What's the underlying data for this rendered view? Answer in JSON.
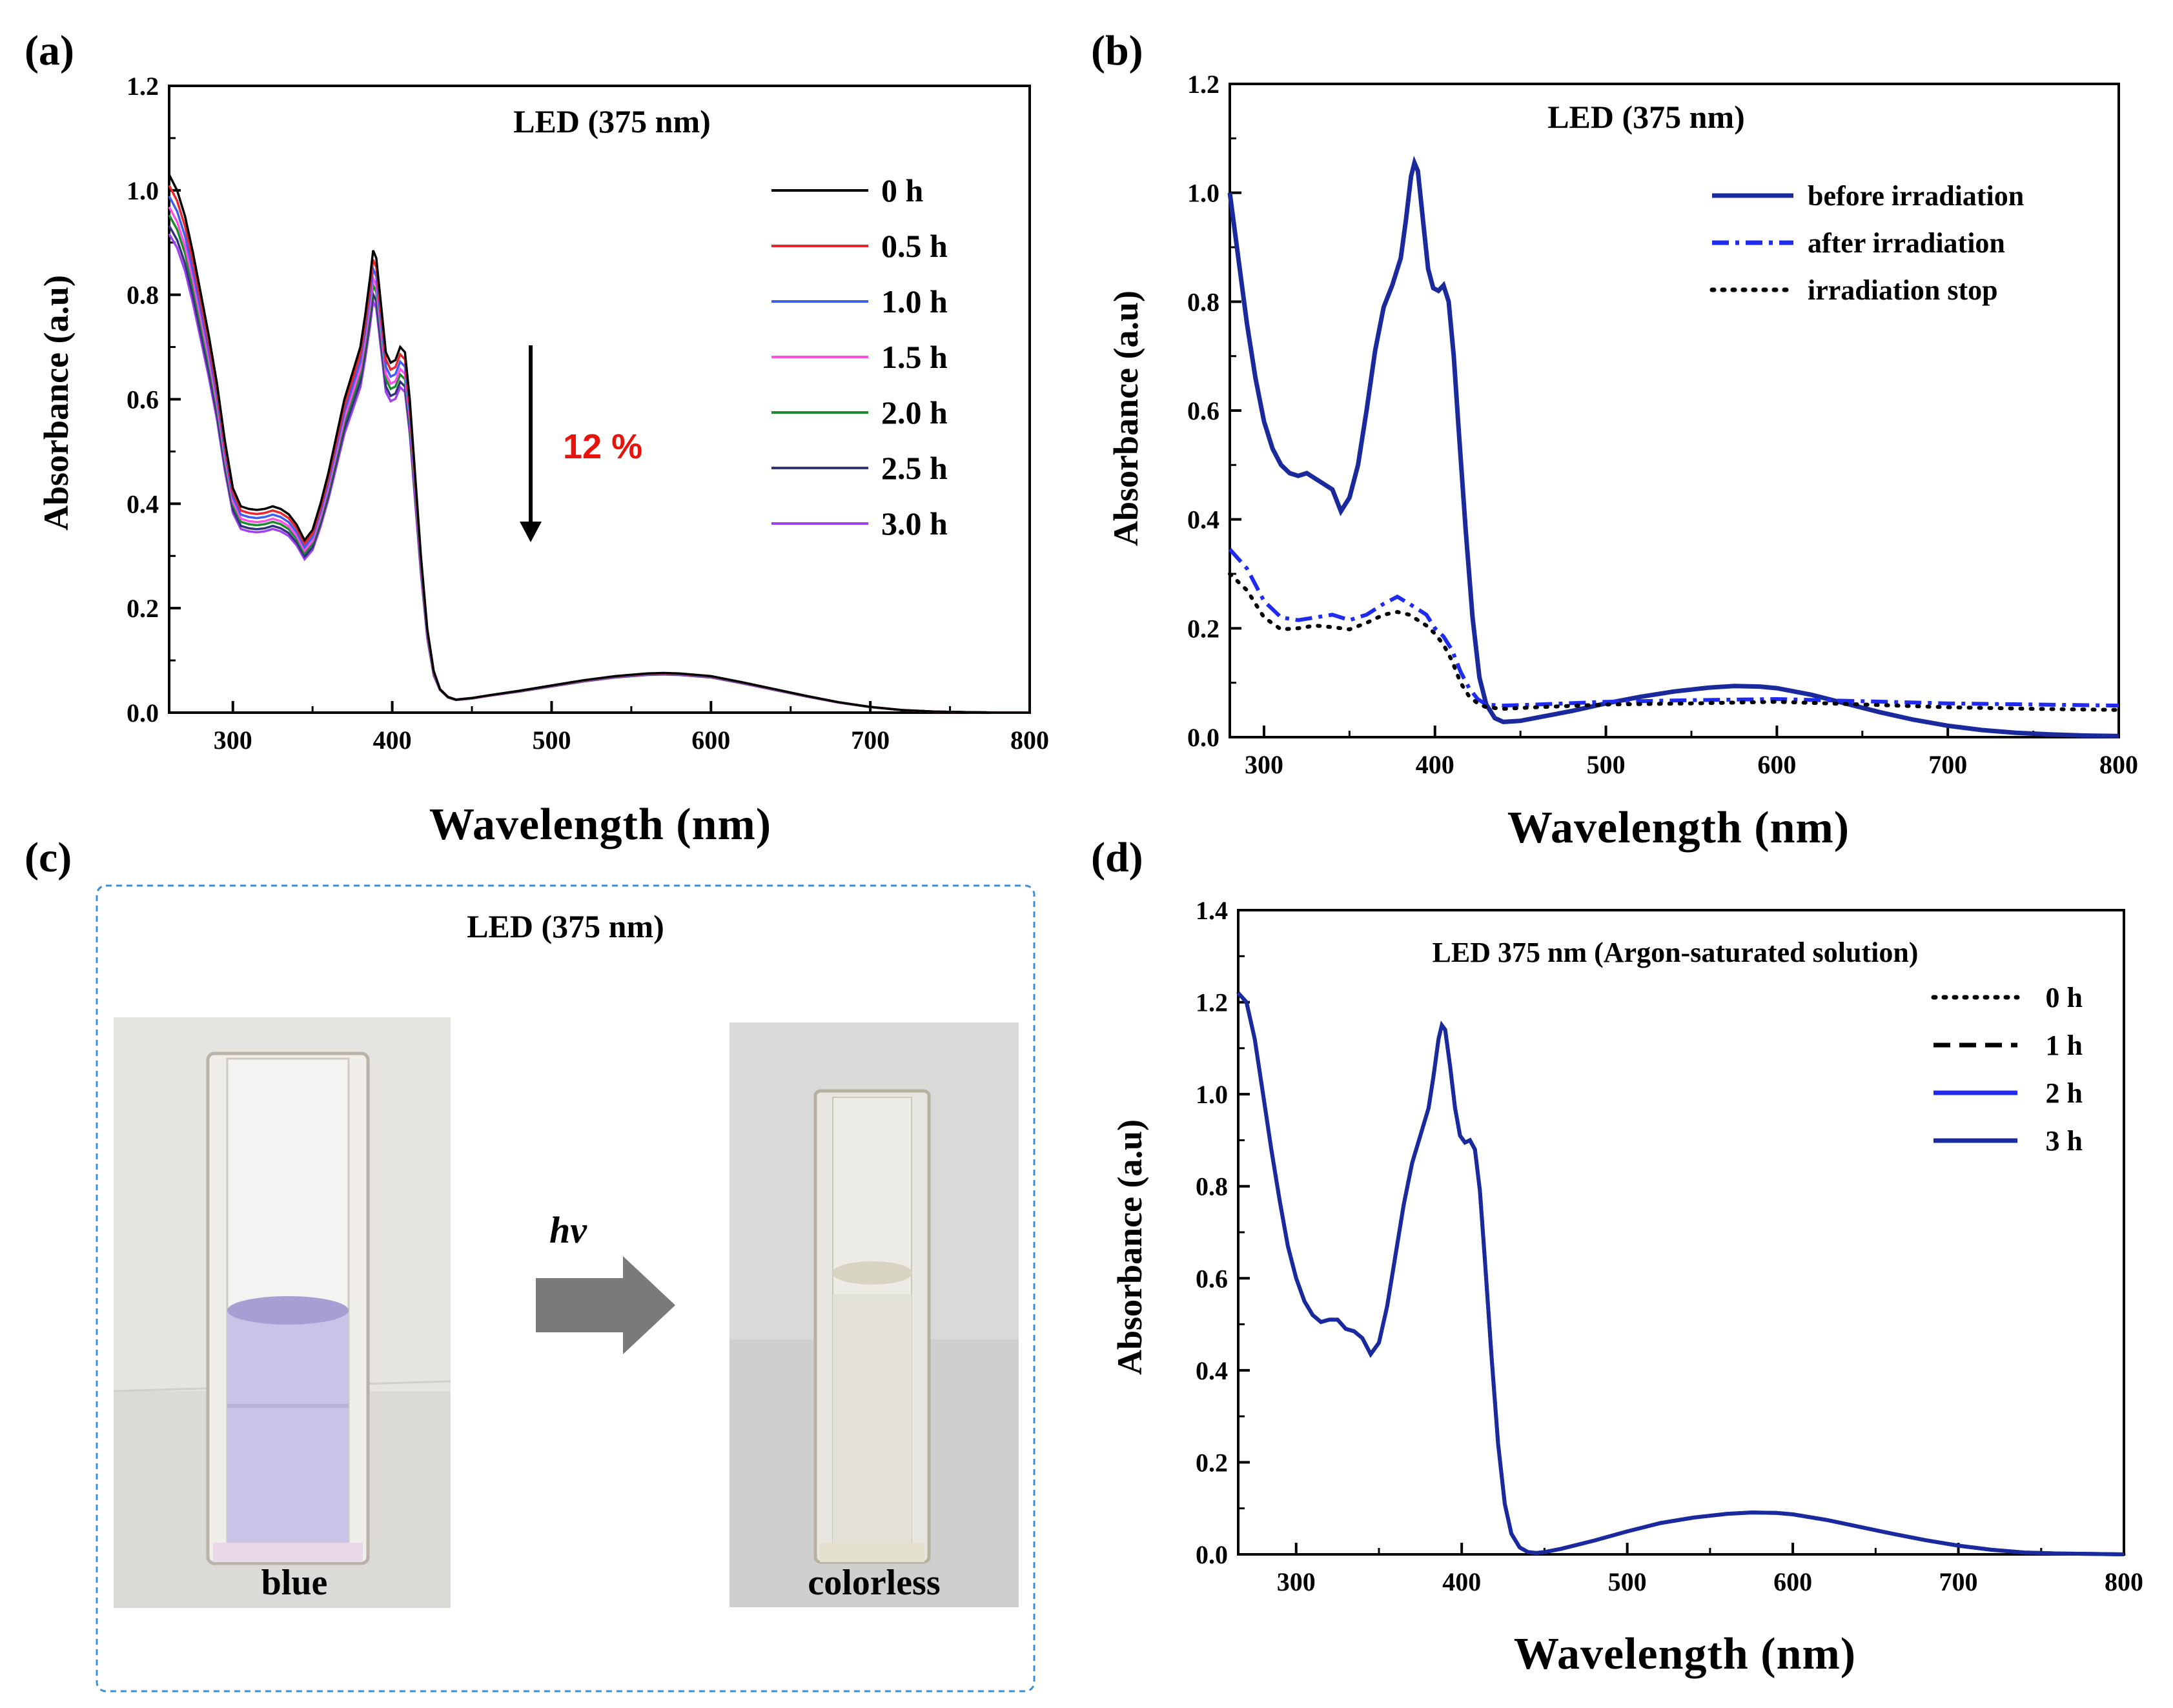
{
  "panels": {
    "a": {
      "letter": "(a)",
      "title": "LED (375 nm)",
      "annotation_percent": "12 %",
      "annotation_color": "#e8140c"
    },
    "b": {
      "letter": "(b)",
      "title": "LED (375 nm)"
    },
    "c": {
      "letter": "(c)",
      "title": "LED (375 nm)",
      "left_caption": "blue",
      "right_caption": "colorless",
      "arrow_label": "hv",
      "border_color": "#3a8fd6"
    },
    "d": {
      "letter": "(d)",
      "title": "LED 375 nm (Argon-saturated solution)"
    }
  },
  "chart_data": [
    {
      "id": "a",
      "type": "line",
      "title": "LED (375 nm)",
      "xlabel": "Wavelength (nm)",
      "ylabel": "Absorbance (a.u)",
      "xlim": [
        260,
        800
      ],
      "ylim": [
        0.0,
        1.2
      ],
      "xticks": [
        300,
        400,
        500,
        600,
        700,
        800
      ],
      "yticks": [
        "0.0",
        "0.2",
        "0.4",
        "0.6",
        "0.8",
        "1.0",
        "1.2"
      ],
      "legend_position": "right",
      "base_profile": {
        "x": [
          260,
          265,
          270,
          275,
          280,
          285,
          290,
          295,
          300,
          305,
          310,
          315,
          320,
          325,
          330,
          335,
          340,
          345,
          350,
          355,
          360,
          365,
          370,
          375,
          380,
          383,
          386,
          388,
          390,
          393,
          396,
          399,
          402,
          405,
          408,
          411,
          414,
          418,
          422,
          426,
          430,
          435,
          440,
          450,
          460,
          480,
          500,
          520,
          540,
          560,
          570,
          580,
          600,
          620,
          640,
          660,
          680,
          700,
          720,
          740,
          760,
          780,
          800
        ],
        "y": [
          1.03,
          1.0,
          0.95,
          0.88,
          0.8,
          0.72,
          0.63,
          0.52,
          0.43,
          0.395,
          0.39,
          0.388,
          0.39,
          0.395,
          0.39,
          0.38,
          0.36,
          0.33,
          0.35,
          0.4,
          0.46,
          0.53,
          0.6,
          0.65,
          0.7,
          0.76,
          0.83,
          0.885,
          0.87,
          0.78,
          0.69,
          0.67,
          0.675,
          0.7,
          0.69,
          0.6,
          0.47,
          0.3,
          0.16,
          0.08,
          0.045,
          0.03,
          0.025,
          0.028,
          0.033,
          0.042,
          0.052,
          0.062,
          0.07,
          0.075,
          0.076,
          0.075,
          0.07,
          0.058,
          0.045,
          0.032,
          0.02,
          0.011,
          0.005,
          0.002,
          0.001,
          0.0,
          0.0
        ]
      },
      "series": [
        {
          "name": "0 h",
          "color": "#000000",
          "scale": 1.0
        },
        {
          "name": "0.5 h",
          "color": "#e8262c",
          "scale": 0.98
        },
        {
          "name": "1.0 h",
          "color": "#3c5ff2",
          "scale": 0.96
        },
        {
          "name": "1.5 h",
          "color": "#ff4ee8",
          "scale": 0.94
        },
        {
          "name": "2.0 h",
          "color": "#1a8c2c",
          "scale": 0.925
        },
        {
          "name": "2.5 h",
          "color": "#33337a",
          "scale": 0.905
        },
        {
          "name": "3.0 h",
          "color": "#a040f2",
          "scale": 0.89
        }
      ]
    },
    {
      "id": "b",
      "type": "line",
      "title": "LED (375 nm)",
      "xlabel": "Wavelength (nm)",
      "ylabel": "Absorbance (a.u)",
      "xlim": [
        280,
        800
      ],
      "ylim": [
        0.0,
        1.2
      ],
      "xticks": [
        300,
        400,
        500,
        600,
        700,
        800
      ],
      "yticks": [
        "0.0",
        "0.2",
        "0.4",
        "0.6",
        "0.8",
        "1.0",
        "1.2"
      ],
      "legend_position": "top-right",
      "series": [
        {
          "name": "before irradiation",
          "color": "#1a2a9c",
          "style": "solid",
          "x": [
            280,
            285,
            290,
            295,
            300,
            305,
            310,
            315,
            320,
            325,
            330,
            335,
            340,
            345,
            350,
            355,
            360,
            365,
            370,
            375,
            380,
            383,
            386,
            388,
            390,
            393,
            396,
            399,
            402,
            405,
            408,
            411,
            414,
            418,
            422,
            426,
            430,
            435,
            440,
            450,
            460,
            480,
            500,
            520,
            540,
            560,
            575,
            590,
            600,
            620,
            640,
            660,
            680,
            700,
            720,
            740,
            760,
            780,
            800
          ],
          "y": [
            1.0,
            0.88,
            0.76,
            0.66,
            0.58,
            0.53,
            0.5,
            0.485,
            0.48,
            0.485,
            0.475,
            0.465,
            0.455,
            0.415,
            0.44,
            0.5,
            0.6,
            0.71,
            0.79,
            0.83,
            0.88,
            0.95,
            1.03,
            1.055,
            1.04,
            0.95,
            0.86,
            0.825,
            0.82,
            0.83,
            0.8,
            0.7,
            0.56,
            0.38,
            0.22,
            0.11,
            0.06,
            0.035,
            0.028,
            0.03,
            0.036,
            0.048,
            0.062,
            0.074,
            0.084,
            0.091,
            0.094,
            0.093,
            0.09,
            0.078,
            0.062,
            0.046,
            0.032,
            0.021,
            0.013,
            0.008,
            0.005,
            0.003,
            0.002
          ]
        },
        {
          "name": "after irradiation",
          "color": "#1f2cf0",
          "style": "dashdot",
          "x": [
            280,
            290,
            300,
            310,
            320,
            330,
            340,
            350,
            360,
            370,
            378,
            385,
            390,
            395,
            400,
            405,
            410,
            415,
            420,
            425,
            430,
            440,
            460,
            500,
            550,
            600,
            650,
            700,
            750,
            800
          ],
          "y": [
            0.345,
            0.31,
            0.25,
            0.22,
            0.215,
            0.22,
            0.225,
            0.215,
            0.225,
            0.245,
            0.258,
            0.245,
            0.235,
            0.225,
            0.2,
            0.185,
            0.16,
            0.12,
            0.09,
            0.07,
            0.06,
            0.058,
            0.06,
            0.065,
            0.068,
            0.07,
            0.066,
            0.062,
            0.06,
            0.058
          ]
        },
        {
          "name": "irradiation stop",
          "color": "#000000",
          "style": "dotted",
          "x": [
            280,
            290,
            300,
            310,
            320,
            330,
            340,
            350,
            360,
            370,
            378,
            385,
            390,
            395,
            400,
            405,
            410,
            415,
            420,
            425,
            430,
            440,
            460,
            500,
            550,
            600,
            650,
            700,
            750,
            800
          ],
          "y": [
            0.3,
            0.27,
            0.22,
            0.198,
            0.2,
            0.205,
            0.202,
            0.198,
            0.21,
            0.225,
            0.23,
            0.225,
            0.215,
            0.205,
            0.19,
            0.17,
            0.14,
            0.1,
            0.075,
            0.062,
            0.055,
            0.052,
            0.055,
            0.06,
            0.062,
            0.065,
            0.06,
            0.055,
            0.052,
            0.05
          ]
        }
      ]
    },
    {
      "id": "d",
      "type": "line",
      "title": "LED 375 nm (Argon-saturated solution)",
      "xlabel": "Wavelength (nm)",
      "ylabel": "Absorbance (a.u)",
      "xlim": [
        265,
        800
      ],
      "ylim": [
        0.0,
        1.4
      ],
      "xticks": [
        300,
        400,
        500,
        600,
        700,
        800
      ],
      "yticks": [
        "0.0",
        "0.2",
        "0.4",
        "0.6",
        "0.8",
        "1.0",
        "1.2",
        "1.4"
      ],
      "legend_position": "top-right",
      "base_profile": {
        "x": [
          265,
          270,
          275,
          280,
          285,
          290,
          295,
          300,
          305,
          310,
          315,
          320,
          325,
          330,
          335,
          340,
          345,
          350,
          355,
          360,
          365,
          370,
          375,
          380,
          383,
          386,
          388,
          390,
          393,
          396,
          399,
          402,
          405,
          408,
          411,
          414,
          418,
          422,
          426,
          430,
          435,
          440,
          445,
          450,
          460,
          480,
          500,
          520,
          540,
          560,
          575,
          590,
          600,
          620,
          640,
          660,
          680,
          700,
          720,
          740,
          760,
          780,
          800
        ],
        "y": [
          1.22,
          1.2,
          1.12,
          1.0,
          0.88,
          0.77,
          0.67,
          0.6,
          0.55,
          0.52,
          0.505,
          0.51,
          0.51,
          0.49,
          0.485,
          0.47,
          0.435,
          0.46,
          0.54,
          0.65,
          0.76,
          0.85,
          0.91,
          0.97,
          1.04,
          1.12,
          1.15,
          1.14,
          1.06,
          0.97,
          0.91,
          0.895,
          0.9,
          0.88,
          0.79,
          0.64,
          0.43,
          0.24,
          0.11,
          0.045,
          0.015,
          0.005,
          0.003,
          0.005,
          0.012,
          0.03,
          0.05,
          0.068,
          0.08,
          0.088,
          0.091,
          0.09,
          0.087,
          0.075,
          0.06,
          0.045,
          0.031,
          0.019,
          0.01,
          0.004,
          0.002,
          0.001,
          0.0
        ]
      },
      "series": [
        {
          "name": "0 h",
          "color": "#000000",
          "style": "dotted"
        },
        {
          "name": "1 h",
          "color": "#000000",
          "style": "dashed"
        },
        {
          "name": "2 h",
          "color": "#1f2cf0",
          "style": "solid"
        },
        {
          "name": "3 h",
          "color": "#1a2a9c",
          "style": "solid"
        }
      ]
    }
  ]
}
